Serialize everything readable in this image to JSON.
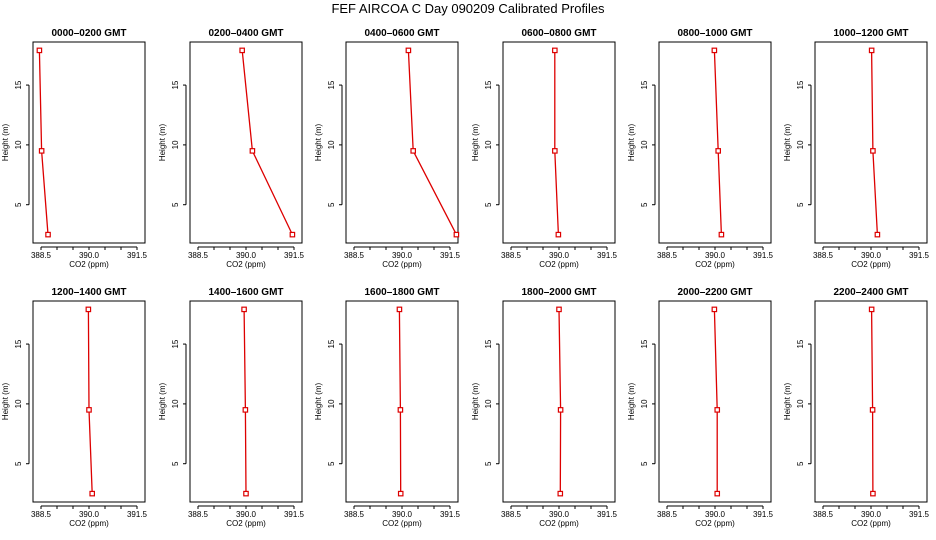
{
  "title": "FEF  AIRCOA C  Day 090209  Calibrated Profiles",
  "chart_data": {
    "type": "line",
    "xlabel": "CO2 (ppm)",
    "ylabel": "Height (m)",
    "xlim": [
      388.25,
      391.75
    ],
    "ylim": [
      1.8,
      18.6
    ],
    "xticks": [
      388.5,
      389.0,
      389.5,
      390.0,
      390.5,
      391.0,
      391.5
    ],
    "xticklabels": [
      "388.5",
      "",
      "390.0",
      "",
      "391.5"
    ],
    "xtick_label_values": [
      388.5,
      389.25,
      390.0,
      390.75,
      391.5
    ],
    "yticks": [
      5,
      10,
      15
    ],
    "yticklabels": [
      "5",
      "10",
      "15"
    ],
    "color": "#dd0000",
    "panels": [
      {
        "title": "0000–0200 GMT",
        "heights": [
          17.9,
          9.5,
          2.5
        ],
        "co2": [
          388.45,
          388.52,
          388.72
        ]
      },
      {
        "title": "0200–0400 GMT",
        "heights": [
          17.9,
          9.5,
          2.5
        ],
        "co2": [
          389.88,
          390.2,
          391.45
        ]
      },
      {
        "title": "0400–0600 GMT",
        "heights": [
          17.9,
          9.5,
          2.5
        ],
        "co2": [
          390.2,
          390.35,
          391.7
        ]
      },
      {
        "title": "0600–0800 GMT",
        "heights": [
          17.9,
          9.5,
          2.5
        ],
        "co2": [
          389.87,
          389.87,
          389.98
        ]
      },
      {
        "title": "0800–1000 GMT",
        "heights": [
          17.9,
          9.5,
          2.5
        ],
        "co2": [
          389.98,
          390.1,
          390.2
        ]
      },
      {
        "title": "1000–1200 GMT",
        "heights": [
          17.9,
          9.5,
          2.5
        ],
        "co2": [
          390.02,
          390.06,
          390.2
        ]
      },
      {
        "title": "1200–1400 GMT",
        "heights": [
          17.9,
          9.5,
          2.5
        ],
        "co2": [
          389.98,
          390.0,
          390.1
        ]
      },
      {
        "title": "1400–1600 GMT",
        "heights": [
          17.9,
          9.5,
          2.5
        ],
        "co2": [
          389.94,
          389.98,
          390.0
        ]
      },
      {
        "title": "1600–1800 GMT",
        "heights": [
          17.9,
          9.5,
          2.5
        ],
        "co2": [
          389.92,
          389.95,
          389.96
        ]
      },
      {
        "title": "1800–2000 GMT",
        "heights": [
          17.9,
          9.5,
          2.5
        ],
        "co2": [
          390.0,
          390.05,
          390.04
        ]
      },
      {
        "title": "2000–2200 GMT",
        "heights": [
          17.9,
          9.5,
          2.5
        ],
        "co2": [
          389.98,
          390.07,
          390.07
        ]
      },
      {
        "title": "2200–2400 GMT",
        "heights": [
          17.9,
          9.5,
          2.5
        ],
        "co2": [
          390.02,
          390.05,
          390.06
        ]
      }
    ]
  }
}
